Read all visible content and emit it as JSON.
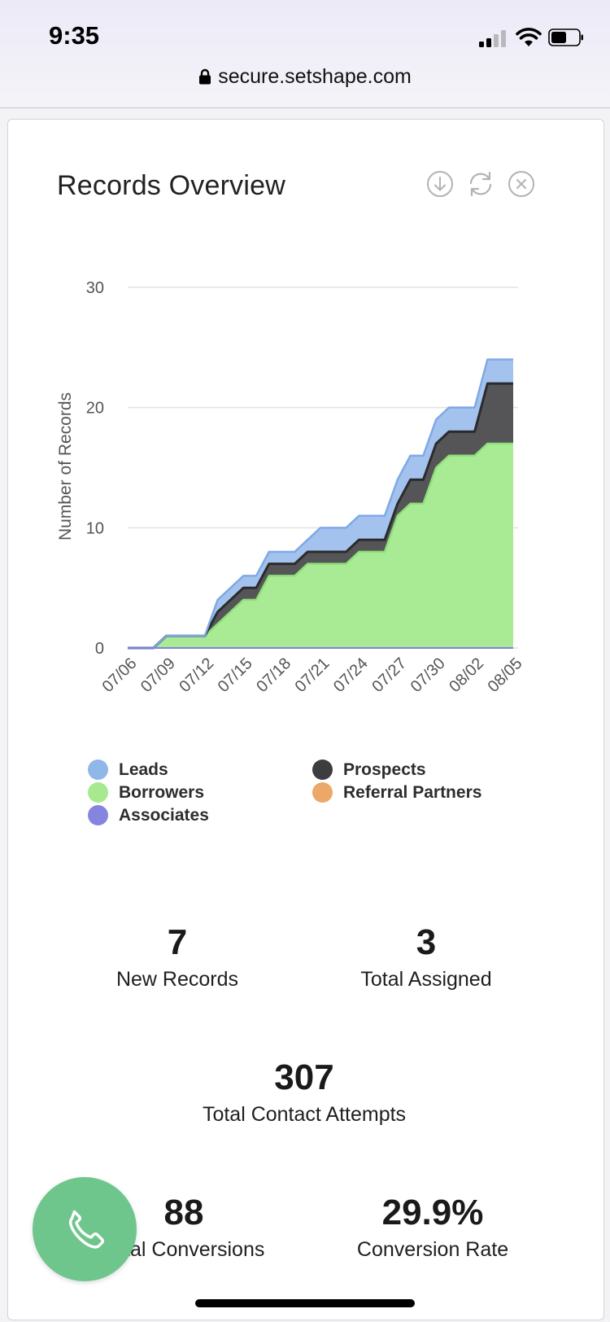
{
  "status_bar": {
    "time": "9:35"
  },
  "browser": {
    "url": "secure.setshape.com"
  },
  "card": {
    "title": "Records Overview",
    "actions": [
      "download-icon",
      "refresh-icon",
      "close-icon"
    ]
  },
  "chart_data": {
    "type": "area",
    "stacked": true,
    "ylabel": "Number of Records",
    "ylim": [
      0,
      30
    ],
    "yticks": [
      0,
      10,
      20,
      30
    ],
    "grid": true,
    "legend": "bottom",
    "x": [
      "07/06",
      "07/07",
      "07/08",
      "07/09",
      "07/10",
      "07/11",
      "07/12",
      "07/13",
      "07/14",
      "07/15",
      "07/16",
      "07/17",
      "07/18",
      "07/19",
      "07/20",
      "07/21",
      "07/22",
      "07/23",
      "07/24",
      "07/25",
      "07/26",
      "07/27",
      "07/28",
      "07/29",
      "07/30",
      "07/31",
      "08/01",
      "08/02",
      "08/03",
      "08/04",
      "08/05"
    ],
    "xticks": [
      "07/06",
      "07/09",
      "07/12",
      "07/15",
      "07/18",
      "07/21",
      "07/24",
      "07/27",
      "07/30",
      "08/02",
      "08/05"
    ],
    "series": [
      {
        "name": "Borrowers",
        "color": "#a9eb94",
        "line": "#8ee07a",
        "values": [
          0,
          0,
          0,
          1,
          1,
          1,
          1,
          2,
          3,
          4,
          4,
          6,
          6,
          6,
          7,
          7,
          7,
          7,
          8,
          8,
          8,
          11,
          12,
          12,
          15,
          16,
          16,
          16,
          17,
          17,
          17
        ]
      },
      {
        "name": "Prospects",
        "color": "#555558",
        "line": "#2b2b2e",
        "values": [
          0,
          0,
          0,
          0,
          0,
          0,
          0,
          1,
          1,
          1,
          1,
          1,
          1,
          1,
          1,
          1,
          1,
          1,
          1,
          1,
          1,
          1,
          2,
          2,
          2,
          2,
          2,
          2,
          5,
          5,
          5
        ]
      },
      {
        "name": "Leads",
        "color": "#a3c3ee",
        "line": "#7fa8e6",
        "values": [
          0,
          0,
          0,
          0,
          0,
          0,
          0,
          1,
          1,
          1,
          1,
          1,
          1,
          1,
          1,
          2,
          2,
          2,
          2,
          2,
          2,
          2,
          2,
          2,
          2,
          2,
          2,
          2,
          2,
          2,
          2
        ]
      },
      {
        "name": "Referral Partners",
        "color": "#eea86a",
        "values": [
          0,
          0,
          0,
          0,
          0,
          0,
          0,
          0,
          0,
          0,
          0,
          0,
          0,
          0,
          0,
          0,
          0,
          0,
          0,
          0,
          0,
          0,
          0,
          0,
          0,
          0,
          0,
          0,
          0,
          0,
          0
        ]
      },
      {
        "name": "Associates",
        "color": "#8080e0",
        "values": [
          0,
          0,
          0,
          0,
          0,
          0,
          0,
          0,
          0,
          0,
          0,
          0,
          0,
          0,
          0,
          0,
          0,
          0,
          0,
          0,
          0,
          0,
          0,
          0,
          0,
          0,
          0,
          0,
          0,
          0,
          0
        ]
      }
    ]
  },
  "legend": [
    {
      "label": "Leads",
      "color": "#8fb7e8"
    },
    {
      "label": "Prospects",
      "color": "#3d3d40"
    },
    {
      "label": "Borrowers",
      "color": "#a6e98f"
    },
    {
      "label": "Referral Partners",
      "color": "#eca868"
    },
    {
      "label": "Associates",
      "color": "#8585e0"
    }
  ],
  "stats": {
    "new_records": {
      "value": "7",
      "label": "New Records"
    },
    "total_assigned": {
      "value": "3",
      "label": "Total Assigned"
    },
    "contact_attempts": {
      "value": "307",
      "label": "Total Contact Attempts"
    },
    "conversions": {
      "value": "88",
      "label": "Total Conversions"
    },
    "conversion_rate": {
      "value": "29.9%",
      "label": "Conversion Rate"
    }
  },
  "fab": {
    "icon": "phone-icon",
    "color": "#6ec68c"
  }
}
